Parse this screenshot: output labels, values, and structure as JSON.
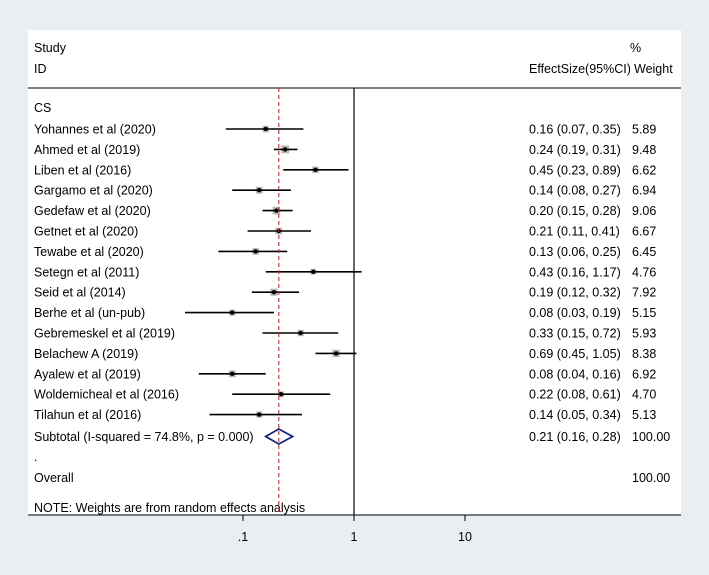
{
  "chart_data": {
    "type": "forest",
    "scale": "log",
    "header": {
      "study_line1": "Study",
      "study_line2": "ID",
      "pct_line1": "%",
      "effect_label": "EffectSize(95%CI)",
      "weight_label": "Weight"
    },
    "group_label": "CS",
    "studies": [
      {
        "name": "Yohannes et al (2020)",
        "es": 0.16,
        "lo": 0.07,
        "hi": 0.35,
        "ci_text": "0.16 (0.07, 0.35)",
        "weight": 5.89,
        "weight_text": "5.89"
      },
      {
        "name": "Ahmed et al (2019)",
        "es": 0.24,
        "lo": 0.19,
        "hi": 0.31,
        "ci_text": "0.24 (0.19, 0.31)",
        "weight": 9.48,
        "weight_text": "9.48"
      },
      {
        "name": "Liben et al (2016)",
        "es": 0.45,
        "lo": 0.23,
        "hi": 0.89,
        "ci_text": "0.45 (0.23, 0.89)",
        "weight": 6.62,
        "weight_text": "6.62"
      },
      {
        "name": "Gargamo et al (2020)",
        "es": 0.14,
        "lo": 0.08,
        "hi": 0.27,
        "ci_text": "0.14 (0.08, 0.27)",
        "weight": 6.94,
        "weight_text": "6.94"
      },
      {
        "name": "Gedefaw et al (2020)",
        "es": 0.2,
        "lo": 0.15,
        "hi": 0.28,
        "ci_text": "0.20 (0.15, 0.28)",
        "weight": 9.06,
        "weight_text": "9.06"
      },
      {
        "name": "Getnet et al (2020)",
        "es": 0.21,
        "lo": 0.11,
        "hi": 0.41,
        "ci_text": "0.21 (0.11, 0.41)",
        "weight": 6.67,
        "weight_text": "6.67"
      },
      {
        "name": "Tewabe et al (2020)",
        "es": 0.13,
        "lo": 0.06,
        "hi": 0.25,
        "ci_text": "0.13 (0.06, 0.25)",
        "weight": 6.45,
        "weight_text": "6.45"
      },
      {
        "name": "Setegn et al (2011)",
        "es": 0.43,
        "lo": 0.16,
        "hi": 1.17,
        "ci_text": "0.43 (0.16, 1.17)",
        "weight": 4.76,
        "weight_text": "4.76"
      },
      {
        "name": "Seid et al (2014)",
        "es": 0.19,
        "lo": 0.12,
        "hi": 0.32,
        "ci_text": "0.19 (0.12, 0.32)",
        "weight": 7.92,
        "weight_text": "7.92"
      },
      {
        "name": "Berhe et al (un-pub)",
        "es": 0.08,
        "lo": 0.03,
        "hi": 0.19,
        "ci_text": "0.08 (0.03, 0.19)",
        "weight": 5.15,
        "weight_text": "5.15"
      },
      {
        "name": "Gebremeskel et al (2019)",
        "es": 0.33,
        "lo": 0.15,
        "hi": 0.72,
        "ci_text": "0.33 (0.15, 0.72)",
        "weight": 5.93,
        "weight_text": "5.93"
      },
      {
        "name": "Belachew A (2019)",
        "es": 0.69,
        "lo": 0.45,
        "hi": 1.05,
        "ci_text": "0.69 (0.45, 1.05)",
        "weight": 8.38,
        "weight_text": "8.38"
      },
      {
        "name": "Ayalew et al (2019)",
        "es": 0.08,
        "lo": 0.04,
        "hi": 0.16,
        "ci_text": "0.08 (0.04, 0.16)",
        "weight": 6.92,
        "weight_text": "6.92"
      },
      {
        "name": "Woldemicheal et al (2016)",
        "es": 0.22,
        "lo": 0.08,
        "hi": 0.61,
        "ci_text": "0.22 (0.08, 0.61)",
        "weight": 4.7,
        "weight_text": "4.70"
      },
      {
        "name": "Tilahun et al (2016)",
        "es": 0.14,
        "lo": 0.05,
        "hi": 0.34,
        "ci_text": "0.14 (0.05, 0.34)",
        "weight": 5.13,
        "weight_text": "5.13"
      }
    ],
    "subtotal": {
      "label": "Subtotal  (I-squared = 74.8%, p = 0.000)",
      "es": 0.21,
      "lo": 0.16,
      "hi": 0.28,
      "ci_text": "0.21 (0.16, 0.28)",
      "weight_text": "100.00"
    },
    "dot_line": ".",
    "overall": {
      "label": "Overall",
      "weight_text": "100.00"
    },
    "note": "NOTE: Weights are from random effects analysis",
    "x_ticks": [
      {
        "value": 0.1,
        "label": ".1"
      },
      {
        "value": 1,
        "label": "1"
      },
      {
        "value": 10,
        "label": "10"
      }
    ],
    "null_value": 1,
    "pooled_reference_line": 0.21,
    "colors": {
      "background": "#e8eef1",
      "plot_area": "#ffffff",
      "reference_line": "#c0282d",
      "diamond": "#1a237e",
      "weight_box": "#b8b8b8",
      "line": "#000000"
    }
  }
}
